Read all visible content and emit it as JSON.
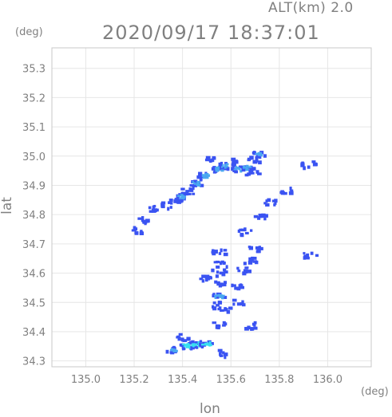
{
  "header": {
    "altitude_label": "ALT(km)  2.0",
    "timestamp": "2020/09/17 18:37:01"
  },
  "chart_data": {
    "type": "heatmap",
    "xlabel": "lon",
    "ylabel": "lat",
    "x_unit": "(deg)",
    "y_unit": "(deg)",
    "xlim": [
      134.86,
      136.18
    ],
    "ylim": [
      34.28,
      35.37
    ],
    "x_ticks": [
      "135.0",
      "135.2",
      "135.4",
      "135.6",
      "135.8",
      "136.0"
    ],
    "y_ticks": [
      "34.3",
      "34.4",
      "34.5",
      "34.6",
      "34.7",
      "34.8",
      "34.9",
      "35.0",
      "35.1",
      "35.2",
      "35.3"
    ],
    "grid": true,
    "colors": {
      "frame": "#c8c8c8",
      "grid": "#e6e6e6",
      "weak": "#3a53f2",
      "medium": "#4aa8f0",
      "strong": "#38e0f0"
    },
    "echo_cells": [
      {
        "lon": 135.52,
        "lat": 34.985,
        "intensity": "weak"
      },
      {
        "lon": 135.55,
        "lat": 34.955,
        "intensity": "medium"
      },
      {
        "lon": 135.58,
        "lat": 34.965,
        "intensity": "medium"
      },
      {
        "lon": 135.61,
        "lat": 34.98,
        "intensity": "weak"
      },
      {
        "lon": 135.63,
        "lat": 34.955,
        "intensity": "medium"
      },
      {
        "lon": 135.67,
        "lat": 34.96,
        "intensity": "medium"
      },
      {
        "lon": 135.7,
        "lat": 34.985,
        "intensity": "weak"
      },
      {
        "lon": 135.72,
        "lat": 35.005,
        "intensity": "medium"
      },
      {
        "lon": 135.69,
        "lat": 34.945,
        "intensity": "weak"
      },
      {
        "lon": 135.49,
        "lat": 34.93,
        "intensity": "medium"
      },
      {
        "lon": 135.46,
        "lat": 34.905,
        "intensity": "medium"
      },
      {
        "lon": 135.42,
        "lat": 34.88,
        "intensity": "weak"
      },
      {
        "lon": 135.4,
        "lat": 34.86,
        "intensity": "medium"
      },
      {
        "lon": 135.37,
        "lat": 34.845,
        "intensity": "weak"
      },
      {
        "lon": 135.33,
        "lat": 34.83,
        "intensity": "weak"
      },
      {
        "lon": 135.28,
        "lat": 34.82,
        "intensity": "weak"
      },
      {
        "lon": 135.24,
        "lat": 34.78,
        "intensity": "weak"
      },
      {
        "lon": 135.21,
        "lat": 34.745,
        "intensity": "weak"
      },
      {
        "lon": 135.92,
        "lat": 34.97,
        "intensity": "weak"
      },
      {
        "lon": 135.83,
        "lat": 34.88,
        "intensity": "weak"
      },
      {
        "lon": 135.76,
        "lat": 34.84,
        "intensity": "weak"
      },
      {
        "lon": 135.72,
        "lat": 34.79,
        "intensity": "weak"
      },
      {
        "lon": 135.66,
        "lat": 34.74,
        "intensity": "weak"
      },
      {
        "lon": 135.7,
        "lat": 34.68,
        "intensity": "weak"
      },
      {
        "lon": 135.68,
        "lat": 34.64,
        "intensity": "weak"
      },
      {
        "lon": 135.65,
        "lat": 34.61,
        "intensity": "weak"
      },
      {
        "lon": 135.93,
        "lat": 34.66,
        "intensity": "weak"
      },
      {
        "lon": 135.55,
        "lat": 34.67,
        "intensity": "weak"
      },
      {
        "lon": 135.56,
        "lat": 34.63,
        "intensity": "weak"
      },
      {
        "lon": 135.55,
        "lat": 34.6,
        "intensity": "weak"
      },
      {
        "lon": 135.56,
        "lat": 34.56,
        "intensity": "weak"
      },
      {
        "lon": 135.55,
        "lat": 34.52,
        "intensity": "medium"
      },
      {
        "lon": 135.55,
        "lat": 34.49,
        "intensity": "weak"
      },
      {
        "lon": 135.57,
        "lat": 34.47,
        "intensity": "weak"
      },
      {
        "lon": 135.62,
        "lat": 34.55,
        "intensity": "weak"
      },
      {
        "lon": 135.63,
        "lat": 34.5,
        "intensity": "weak"
      },
      {
        "lon": 135.5,
        "lat": 34.58,
        "intensity": "weak"
      },
      {
        "lon": 135.55,
        "lat": 34.42,
        "intensity": "weak"
      },
      {
        "lon": 135.68,
        "lat": 34.42,
        "intensity": "weak"
      },
      {
        "lon": 135.4,
        "lat": 34.38,
        "intensity": "weak"
      },
      {
        "lon": 135.42,
        "lat": 34.35,
        "intensity": "strong"
      },
      {
        "lon": 135.46,
        "lat": 34.355,
        "intensity": "strong"
      },
      {
        "lon": 135.5,
        "lat": 34.355,
        "intensity": "strong"
      },
      {
        "lon": 135.36,
        "lat": 34.335,
        "intensity": "medium"
      },
      {
        "lon": 135.56,
        "lat": 34.325,
        "intensity": "weak"
      }
    ]
  }
}
